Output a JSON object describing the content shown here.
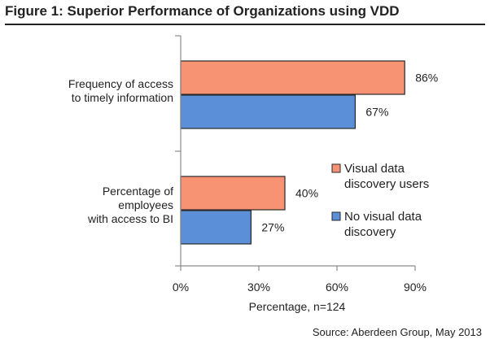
{
  "figure": {
    "title": "Figure 1: Superior Performance of Organizations using VDD",
    "source": "Source: Aberdeen Group, May 2013"
  },
  "chart_data": {
    "type": "bar",
    "orientation": "horizontal",
    "categories": [
      [
        "Frequency of access",
        "to timely information"
      ],
      [
        "Percentage of",
        "employees",
        "with access to BI"
      ]
    ],
    "series": [
      {
        "name": "Visual data discovery users",
        "legend_lines": [
          "Visual data",
          "discovery users"
        ],
        "color": "#F79272",
        "values": [
          86,
          40
        ],
        "labels": [
          "86%",
          "40%"
        ]
      },
      {
        "name": "No visual data discovery",
        "legend_lines": [
          "No visual data",
          "discovery"
        ],
        "color": "#5B8FD8",
        "values": [
          67,
          27
        ],
        "labels": [
          "67%",
          "27%"
        ]
      }
    ],
    "xlabel": "Percentage, n=124",
    "xlim": [
      0,
      90
    ],
    "xticks": [
      0,
      30,
      60,
      90
    ],
    "xtick_labels": [
      "0%",
      "30%",
      "60%",
      "90%"
    ],
    "legend_placement": "right",
    "grid": false
  }
}
